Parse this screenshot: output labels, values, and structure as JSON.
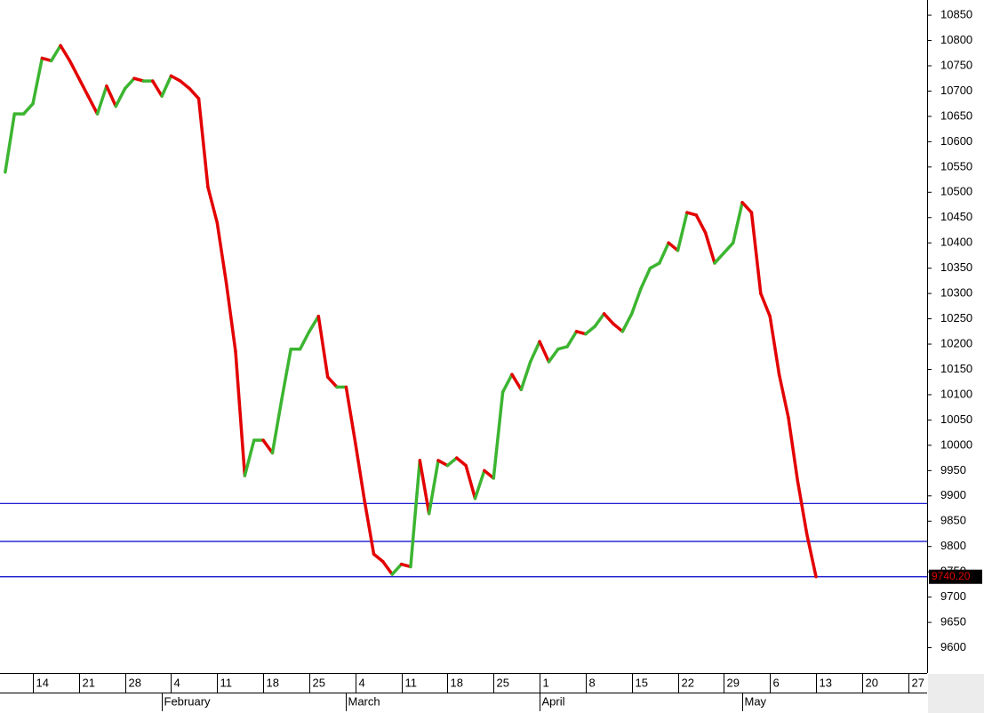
{
  "chart_data": {
    "type": "line",
    "categories": [
      null,
      null,
      null,
      "14",
      null,
      null,
      null,
      null,
      "21",
      null,
      null,
      null,
      null,
      "28",
      null,
      null,
      null,
      null,
      "4",
      null,
      null,
      null,
      null,
      "11",
      null,
      null,
      null,
      null,
      "18",
      null,
      null,
      null,
      null,
      "25",
      null,
      null,
      null,
      null,
      "4",
      null,
      null,
      null,
      null,
      "11",
      null,
      null,
      null,
      null,
      "18",
      null,
      null,
      null,
      null,
      "25",
      null,
      null,
      null,
      null,
      "1",
      null,
      null,
      null,
      null,
      "8",
      null,
      null,
      null,
      null,
      "15",
      null,
      null,
      null,
      null,
      "22",
      null,
      null,
      null,
      null,
      "29",
      null,
      null,
      null,
      null,
      "6",
      null,
      null,
      null,
      null,
      "13",
      null,
      null,
      null,
      null,
      "20",
      null,
      null,
      null,
      null,
      "27"
    ],
    "months": [
      null,
      null,
      null,
      null,
      null,
      null,
      null,
      null,
      null,
      null,
      null,
      null,
      null,
      null,
      null,
      null,
      null,
      "February",
      null,
      null,
      null,
      null,
      null,
      null,
      null,
      null,
      null,
      null,
      null,
      null,
      null,
      null,
      null,
      null,
      null,
      null,
      null,
      "March",
      null,
      null,
      null,
      null,
      null,
      null,
      null,
      null,
      null,
      null,
      null,
      null,
      null,
      null,
      null,
      null,
      null,
      null,
      null,
      null,
      "April",
      null,
      null,
      null,
      null,
      null,
      null,
      null,
      null,
      null,
      null,
      null,
      null,
      null,
      null,
      null,
      null,
      null,
      null,
      null,
      null,
      null,
      "May",
      null,
      null,
      null,
      null,
      null,
      null,
      null,
      null,
      null,
      null,
      null,
      null,
      null,
      null,
      null,
      null,
      null,
      null
    ],
    "series": [
      {
        "up_color": "#3cb531",
        "down_color": "#e30000",
        "values": [
          10540,
          10655,
          10655,
          10675,
          10765,
          10760,
          10790,
          10760,
          10725,
          10690,
          10655,
          10710,
          10670,
          10705,
          10725,
          10720,
          10720,
          10690,
          10730,
          10720,
          10705,
          10685,
          10510,
          10440,
          10320,
          10185,
          9940,
          10010,
          10010,
          9985,
          10090,
          10190,
          10190,
          10225,
          10255,
          10135,
          10115,
          10115,
          10005,
          9890,
          9785,
          9770,
          9745,
          9765,
          9760,
          9970,
          9865,
          9970,
          9960,
          9975,
          9960,
          9895,
          9950,
          9935,
          10105,
          10140,
          10110,
          10165,
          10205,
          10165,
          10190,
          10195,
          10225,
          10220,
          10235,
          10260,
          10240,
          10225,
          10260,
          10310,
          10350,
          10360,
          10400,
          10385,
          10460,
          10455,
          10420,
          10360,
          10380,
          10400,
          10480,
          10460,
          10300,
          10255,
          10140,
          10055,
          9930,
          9825,
          9740.2,
          null,
          null,
          null,
          null,
          null,
          null,
          null,
          null,
          null,
          null
        ],
        "last_value_label": "9740.20"
      }
    ],
    "hlines": [
      9885,
      9810,
      9740.2
    ],
    "hline_color": "#0000cc",
    "ylim": [
      9550,
      10880
    ],
    "yticks": [
      9600,
      9650,
      9700,
      9750,
      9800,
      9850,
      9900,
      9950,
      10000,
      10050,
      10100,
      10150,
      10200,
      10250,
      10300,
      10350,
      10400,
      10450,
      10500,
      10550,
      10600,
      10650,
      10700,
      10750,
      10800,
      10850
    ]
  }
}
